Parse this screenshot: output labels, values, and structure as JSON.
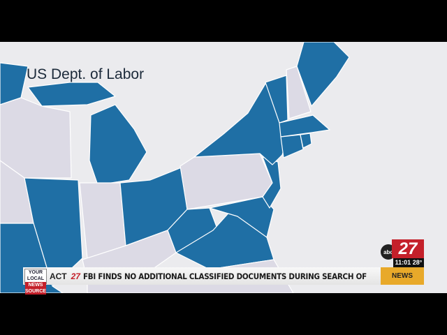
{
  "map": {
    "source_label": "US Dept. of Labor",
    "colors": {
      "highlight": "#1f6fa5",
      "other": "#dcdae5",
      "background": "#ebebee"
    }
  },
  "ticker": {
    "branding_line1": "YOUR LOCAL",
    "branding_line2": "NEWS SOURCE",
    "previous_fragment": "ACT",
    "channel_mark": "27",
    "headline": "FBI FINDS NO ADDITIONAL CLASSIFIED DOCUMENTS DURING SEARCH OF",
    "section": "NEWS"
  },
  "logo": {
    "network": "abc",
    "channel": "27",
    "time": "11:01",
    "temperature": "28°"
  }
}
